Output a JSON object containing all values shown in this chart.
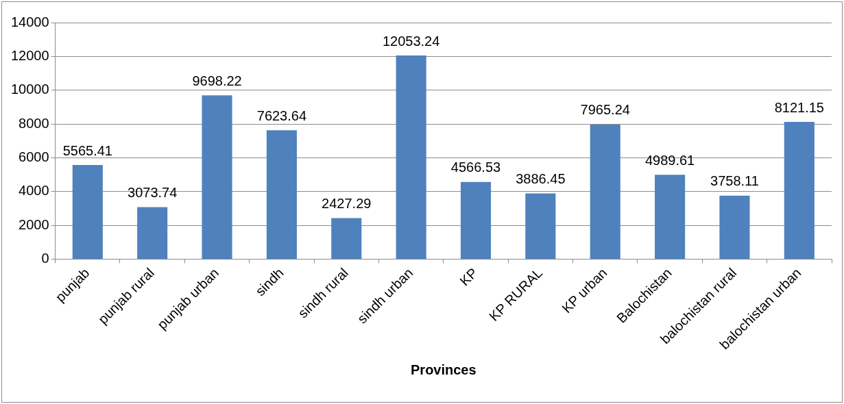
{
  "chart_data": {
    "type": "bar",
    "xlabel": "Provinces",
    "categories": [
      "punjab",
      "punjab rural",
      "punjab urban",
      "sindh",
      "sindh rural",
      "sindh urban",
      "KP",
      "KP RURAL",
      "KP urban",
      "Balochistan",
      "balochistan rural",
      "balochistan urban"
    ],
    "values": [
      5565.41,
      3073.74,
      9698.22,
      7623.64,
      2427.29,
      12053.24,
      4566.53,
      3886.45,
      7965.24,
      4989.61,
      3758.11,
      8121.15
    ],
    "color": "#4f81bd",
    "ylim": [
      0,
      14000
    ],
    "yticks": [
      0,
      2000,
      4000,
      6000,
      8000,
      10000,
      12000,
      14000
    ],
    "grid": "y",
    "legend": false,
    "data_labels": true
  }
}
